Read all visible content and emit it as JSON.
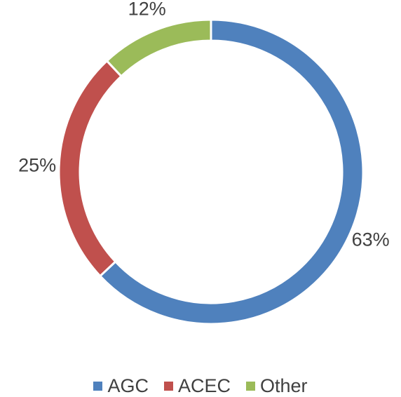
{
  "chart_data": {
    "type": "donut",
    "categories": [
      "AGC",
      "ACEC",
      "Other"
    ],
    "values": [
      63,
      25,
      12
    ],
    "value_labels": [
      "63%",
      "25%",
      "12%"
    ],
    "colors": [
      "#4f81bd",
      "#c0504d",
      "#9bbb59"
    ],
    "legend": "bottom"
  }
}
